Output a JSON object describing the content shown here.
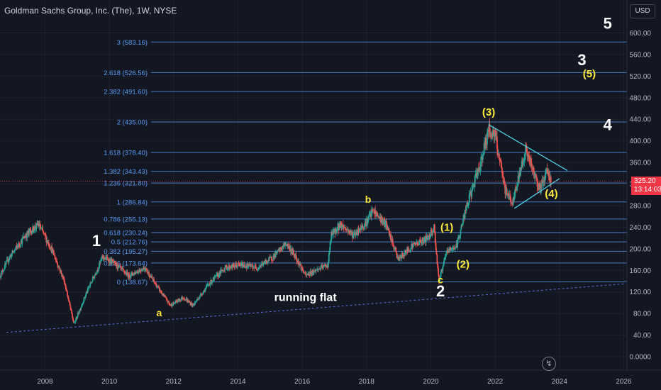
{
  "header": {
    "title": "Goldman Sachs Group, Inc. (The), 1W, NYSE"
  },
  "price_scale": {
    "currency": "USD"
  },
  "last_price": {
    "value": "325.20",
    "countdown": "13:14:03"
  },
  "chart_data": {
    "type": "candlestick",
    "title": "Goldman Sachs Group, Inc. (The), 1W, NYSE",
    "y_ticks": [
      "600.00",
      "560.00",
      "520.00",
      "480.00",
      "440.00",
      "400.00",
      "360.00",
      "320.00",
      "280.00",
      "240.00",
      "200.00",
      "160.00",
      "120.00",
      "80.00",
      "40.00",
      "0.0000"
    ],
    "x_ticks": [
      "2008",
      "2010",
      "2012",
      "2014",
      "2016",
      "2018",
      "2020",
      "2022",
      "2024",
      "2026"
    ],
    "ylim": [
      -10,
      640
    ],
    "xlim": [
      2006.6,
      2026.1
    ],
    "colors": {
      "up": "#26a69a",
      "down": "#ef5350",
      "fib": "#5b9cf6",
      "wave_major": "#ffffff",
      "wave_minor": "#ffeb3b",
      "trend": "#4dd0e1"
    },
    "fib_levels": [
      {
        "ratio": "0",
        "label": "0 (138.67)",
        "value": 138.67
      },
      {
        "ratio": "0.236",
        "label": "0.236 (173.64)",
        "value": 173.64
      },
      {
        "ratio": "0.382",
        "label": "0.382 (195.27)",
        "value": 195.27
      },
      {
        "ratio": "0.5",
        "label": "0.5 (212.76)",
        "value": 212.76
      },
      {
        "ratio": "0.618",
        "label": "0.618 (230.24)",
        "value": 230.24
      },
      {
        "ratio": "0.786",
        "label": "0.786 (255.13)",
        "value": 255.13
      },
      {
        "ratio": "1",
        "label": "1 (286.84)",
        "value": 286.84
      },
      {
        "ratio": "1.236",
        "label": "1.236 (321.80)",
        "value": 321.8
      },
      {
        "ratio": "1.382",
        "label": "1.382 (343.43)",
        "value": 343.43
      },
      {
        "ratio": "1.618",
        "label": "1.618 (378.40)",
        "value": 378.4
      },
      {
        "ratio": "2",
        "label": "2 (435.00)",
        "value": 435.0
      },
      {
        "ratio": "2.382",
        "label": "2.382 (491.60)",
        "value": 491.6
      },
      {
        "ratio": "2.618",
        "label": "2.618 (526.56)",
        "value": 526.56
      },
      {
        "ratio": "3",
        "label": "3 (583.16)",
        "value": 583.16
      }
    ],
    "price_path": [
      [
        2006.6,
        150
      ],
      [
        2006.9,
        185
      ],
      [
        2007.4,
        225
      ],
      [
        2007.8,
        245
      ],
      [
        2008.2,
        200
      ],
      [
        2008.6,
        140
      ],
      [
        2008.9,
        60
      ],
      [
        2009.3,
        120
      ],
      [
        2009.8,
        185
      ],
      [
        2010.1,
        175
      ],
      [
        2010.6,
        150
      ],
      [
        2011.1,
        165
      ],
      [
        2011.6,
        120
      ],
      [
        2011.9,
        95
      ],
      [
        2012.3,
        110
      ],
      [
        2012.6,
        95
      ],
      [
        2013.1,
        135
      ],
      [
        2013.6,
        165
      ],
      [
        2014.1,
        170
      ],
      [
        2014.6,
        165
      ],
      [
        2015.1,
        185
      ],
      [
        2015.5,
        210
      ],
      [
        2015.8,
        185
      ],
      [
        2016.1,
        150
      ],
      [
        2016.4,
        160
      ],
      [
        2016.8,
        170
      ],
      [
        2016.9,
        225
      ],
      [
        2017.2,
        245
      ],
      [
        2017.6,
        225
      ],
      [
        2018.0,
        250
      ],
      [
        2018.2,
        270
      ],
      [
        2018.6,
        245
      ],
      [
        2018.9,
        195
      ],
      [
        2019.0,
        180
      ],
      [
        2019.4,
        205
      ],
      [
        2019.9,
        220
      ],
      [
        2020.1,
        240
      ],
      [
        2020.25,
        140
      ],
      [
        2020.5,
        195
      ],
      [
        2020.8,
        205
      ],
      [
        2021.1,
        275
      ],
      [
        2021.5,
        350
      ],
      [
        2021.8,
        420
      ],
      [
        2022.0,
        410
      ],
      [
        2022.3,
        310
      ],
      [
        2022.55,
        285
      ],
      [
        2022.8,
        350
      ],
      [
        2022.95,
        385
      ],
      [
        2023.2,
        340
      ],
      [
        2023.4,
        310
      ],
      [
        2023.6,
        345
      ],
      [
        2023.75,
        325
      ]
    ],
    "trendline": [
      [
        2006.8,
        45
      ],
      [
        2026.0,
        135
      ]
    ],
    "triangle_upper": [
      [
        2021.8,
        430
      ],
      [
        2024.25,
        345
      ]
    ],
    "triangle_lower": [
      [
        2022.6,
        275
      ],
      [
        2024.0,
        330
      ]
    ],
    "wave_labels": [
      {
        "text": "1",
        "kind": "major",
        "x": 2009.6,
        "y": 205
      },
      {
        "text": "2",
        "kind": "major",
        "x": 2020.3,
        "y": 112
      },
      {
        "text": "3",
        "kind": "major",
        "x": 2024.7,
        "y": 540
      },
      {
        "text": "4",
        "kind": "major",
        "x": 2025.5,
        "y": 420
      },
      {
        "text": "5",
        "kind": "major",
        "x": 2025.5,
        "y": 608
      },
      {
        "text": "a",
        "kind": "minor",
        "x": 2011.55,
        "y": 75
      },
      {
        "text": "b",
        "kind": "minor",
        "x": 2018.05,
        "y": 285
      },
      {
        "text": "c",
        "kind": "minor",
        "x": 2020.3,
        "y": 136
      },
      {
        "text": "(1)",
        "kind": "minor",
        "x": 2020.5,
        "y": 233
      },
      {
        "text": "(2)",
        "kind": "minor",
        "x": 2021.0,
        "y": 165
      },
      {
        "text": "(3)",
        "kind": "minor",
        "x": 2021.8,
        "y": 447
      },
      {
        "text": "(4)",
        "kind": "minor",
        "x": 2023.75,
        "y": 296
      },
      {
        "text": "(5)",
        "kind": "minor",
        "x": 2024.93,
        "y": 518
      }
    ],
    "annotation": {
      "text": "running flat",
      "x": 2016.1,
      "y": 103
    }
  }
}
